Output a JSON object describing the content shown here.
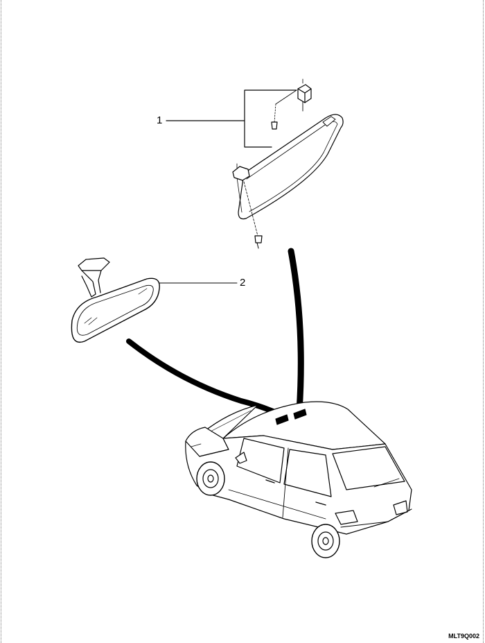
{
  "diagram": {
    "callouts": [
      {
        "id": "1",
        "label": "1",
        "part": "sun-visor-assembly"
      },
      {
        "id": "2",
        "label": "2",
        "part": "inside-rearview-mirror"
      }
    ],
    "figure_code": "MLT9Q002"
  }
}
